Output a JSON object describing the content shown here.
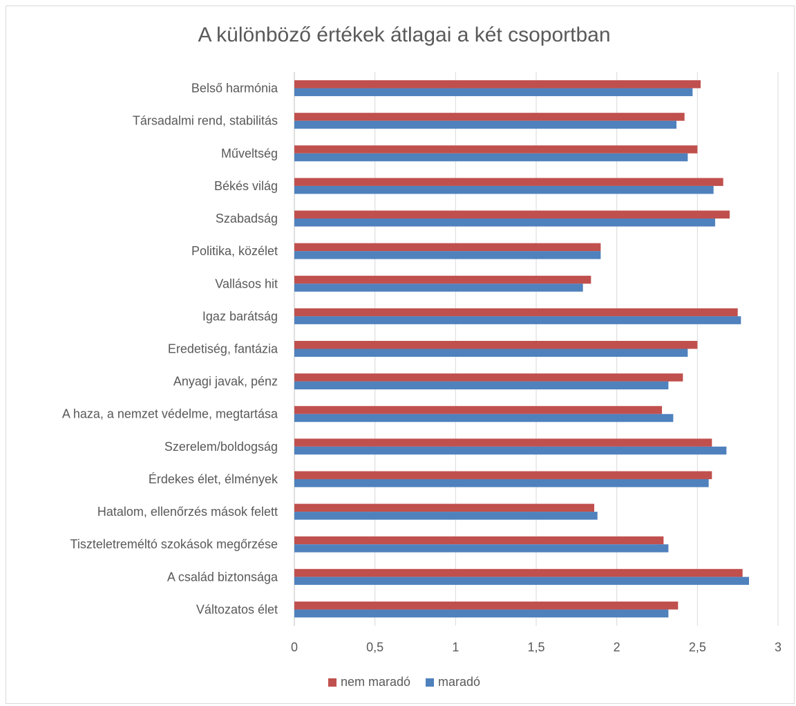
{
  "chart_data": {
    "type": "bar",
    "orientation": "horizontal",
    "title": "A különböző értékek átlagai a két csoportban",
    "categories": [
      "Belső harmónia",
      "Társadalmi rend, stabilitás",
      "Műveltség",
      "Békés világ",
      "Szabadság",
      "Politika, közélet",
      "Vallásos hit",
      "Igaz barátság",
      "Eredetiség, fantázia",
      "Anyagi javak, pénz",
      "A haza, a nemzet védelme, megtartása",
      "Szerelem/boldogság",
      "Érdekes élet, élmények",
      "Hatalom, ellenőrzés mások felett",
      "Tiszteletreméltó szokások megőrzése",
      "A család biztonsága",
      "Változatos élet"
    ],
    "series": [
      {
        "name": "nem maradó",
        "color": "#c0504d",
        "values": [
          2.52,
          2.42,
          2.5,
          2.66,
          2.7,
          1.9,
          1.84,
          2.75,
          2.5,
          2.41,
          2.28,
          2.59,
          2.59,
          1.86,
          2.29,
          2.78,
          2.38
        ]
      },
      {
        "name": "maradó",
        "color": "#4f81bd",
        "values": [
          2.47,
          2.37,
          2.44,
          2.6,
          2.61,
          1.9,
          1.79,
          2.77,
          2.44,
          2.32,
          2.35,
          2.68,
          2.57,
          1.88,
          2.32,
          2.82,
          2.32
        ]
      }
    ],
    "xlim": [
      0,
      3
    ],
    "xticks": [
      "0",
      "0,5",
      "1",
      "1,5",
      "2",
      "2,5",
      "3"
    ],
    "grid": true,
    "legend_position": "bottom"
  }
}
